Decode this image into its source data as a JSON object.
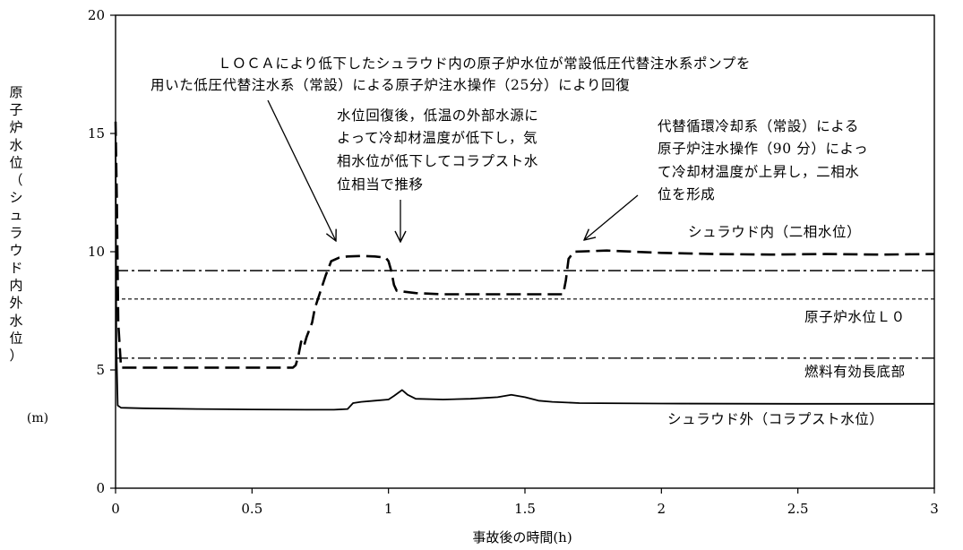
{
  "chart_data": {
    "type": "line",
    "xlabel": "事故後の時間(h)",
    "ylabel": "原子炉水位（シュラウド内外水位）",
    "yunit": "(m)",
    "xlim": [
      0,
      3
    ],
    "ylim": [
      0,
      20
    ],
    "xticks": [
      {
        "v": 0,
        "label": "0"
      },
      {
        "v": 0.5,
        "label": "0.5"
      },
      {
        "v": 1,
        "label": "1"
      },
      {
        "v": 1.5,
        "label": "1.5"
      },
      {
        "v": 2,
        "label": "2"
      },
      {
        "v": 2.5,
        "label": "2.5"
      },
      {
        "v": 3,
        "label": "3"
      }
    ],
    "yticks": [
      {
        "v": 0,
        "label": "0"
      },
      {
        "v": 5,
        "label": "5"
      },
      {
        "v": 10,
        "label": "10"
      },
      {
        "v": 15,
        "label": "15"
      },
      {
        "v": 20,
        "label": "20"
      }
    ],
    "reference_lines": [
      {
        "label": "",
        "y": 9.2,
        "style": "dashdot"
      },
      {
        "label": "原子炉水位Ｌ０",
        "y": 8.0,
        "style": "dotted"
      },
      {
        "label": "燃料有効長底部",
        "y": 5.5,
        "style": "dashdot"
      }
    ],
    "series": [
      {
        "name": "シュラウド内（二相水位）",
        "style": "dashed",
        "points": [
          [
            0.0,
            15.5
          ],
          [
            0.005,
            12.0
          ],
          [
            0.01,
            7.0
          ],
          [
            0.02,
            5.1
          ],
          [
            0.05,
            5.1
          ],
          [
            0.3,
            5.1
          ],
          [
            0.65,
            5.1
          ],
          [
            0.66,
            5.2
          ],
          [
            0.67,
            5.6
          ],
          [
            0.68,
            6.2
          ],
          [
            0.69,
            6.0
          ],
          [
            0.7,
            6.4
          ],
          [
            0.72,
            7.0
          ],
          [
            0.73,
            7.6
          ],
          [
            0.75,
            8.3
          ],
          [
            0.77,
            9.0
          ],
          [
            0.79,
            9.6
          ],
          [
            0.82,
            9.75
          ],
          [
            0.85,
            9.8
          ],
          [
            0.9,
            9.82
          ],
          [
            0.95,
            9.8
          ],
          [
            0.99,
            9.75
          ],
          [
            1.0,
            9.6
          ],
          [
            1.01,
            9.2
          ],
          [
            1.02,
            8.6
          ],
          [
            1.03,
            8.35
          ],
          [
            1.1,
            8.25
          ],
          [
            1.2,
            8.2
          ],
          [
            1.4,
            8.2
          ],
          [
            1.6,
            8.2
          ],
          [
            1.64,
            8.2
          ],
          [
            1.65,
            8.8
          ],
          [
            1.66,
            9.7
          ],
          [
            1.68,
            10.0
          ],
          [
            1.8,
            10.05
          ],
          [
            2.0,
            9.95
          ],
          [
            2.2,
            9.9
          ],
          [
            2.4,
            9.88
          ],
          [
            2.6,
            9.9
          ],
          [
            2.8,
            9.88
          ],
          [
            3.0,
            9.9
          ]
        ]
      },
      {
        "name": "シュラウド外（コラプスト水位）",
        "style": "solid",
        "points": [
          [
            0.0,
            15.0
          ],
          [
            0.003,
            6.0
          ],
          [
            0.008,
            3.5
          ],
          [
            0.02,
            3.4
          ],
          [
            0.1,
            3.38
          ],
          [
            0.3,
            3.35
          ],
          [
            0.5,
            3.33
          ],
          [
            0.7,
            3.32
          ],
          [
            0.8,
            3.32
          ],
          [
            0.85,
            3.35
          ],
          [
            0.87,
            3.6
          ],
          [
            0.9,
            3.65
          ],
          [
            0.95,
            3.7
          ],
          [
            1.0,
            3.75
          ],
          [
            1.02,
            3.9
          ],
          [
            1.05,
            4.15
          ],
          [
            1.07,
            3.95
          ],
          [
            1.1,
            3.78
          ],
          [
            1.2,
            3.75
          ],
          [
            1.3,
            3.78
          ],
          [
            1.4,
            3.85
          ],
          [
            1.45,
            3.95
          ],
          [
            1.5,
            3.85
          ],
          [
            1.55,
            3.7
          ],
          [
            1.6,
            3.65
          ],
          [
            1.7,
            3.6
          ],
          [
            2.0,
            3.58
          ],
          [
            2.5,
            3.57
          ],
          [
            3.0,
            3.57
          ]
        ]
      }
    ],
    "annotations": [
      {
        "lines": [
          "ＬＯＣＡにより低下したシュラウド内の原子炉水位が常設低圧代替注水系ポンプを",
          "用いた低圧代替注水系（常設）による原子炉注水操作（25分）により回復"
        ]
      },
      {
        "lines": [
          "水位回復後，低温の外部水源に",
          "よって冷却材温度が低下し，気",
          "相水位が低下してコラプスト水",
          "位相当で推移"
        ]
      },
      {
        "lines": [
          "代替循環冷却系（常設）による",
          "原子炉注水操作（90 分）によっ",
          "て冷却材温度が上昇し，二相水",
          "位を形成"
        ]
      }
    ]
  }
}
